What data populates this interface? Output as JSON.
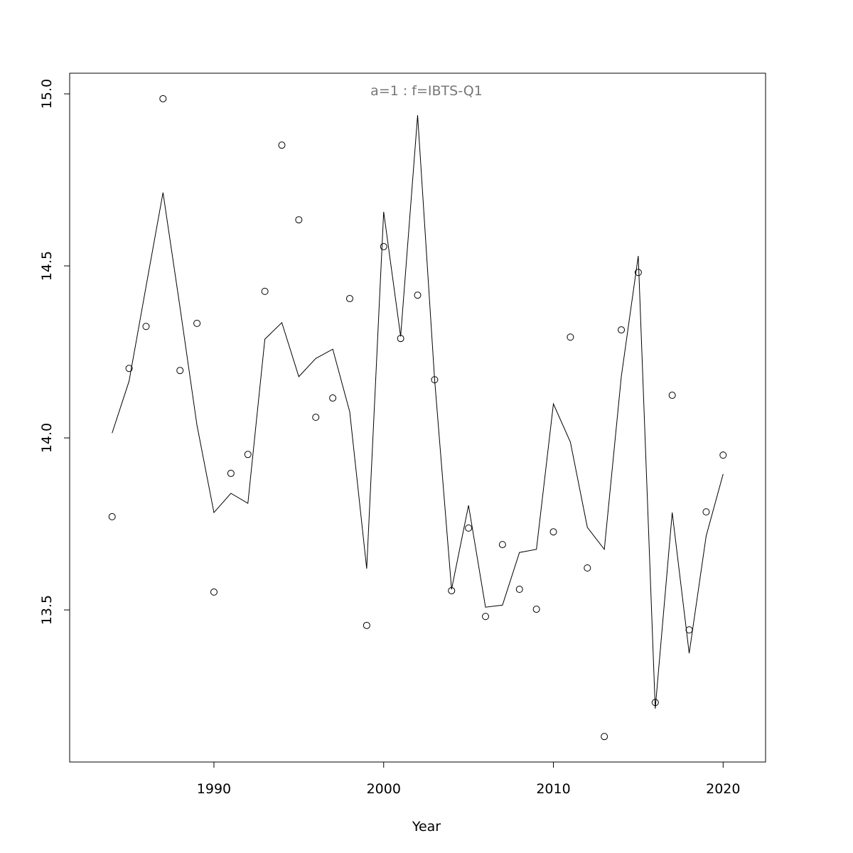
{
  "chart_data": {
    "type": "scatter",
    "title": "a=1  :  f=IBTS-Q1",
    "xlabel": "Year",
    "x": [
      1984,
      1985,
      1986,
      1987,
      1988,
      1989,
      1990,
      1991,
      1992,
      1993,
      1994,
      1995,
      1996,
      1997,
      1998,
      1999,
      2000,
      2001,
      2002,
      2003,
      2004,
      2005,
      2006,
      2007,
      2008,
      2009,
      2010,
      2011,
      2012,
      2013,
      2014,
      2015,
      2016,
      2017,
      2018,
      2019,
      2020
    ],
    "series": [
      {
        "mode": "points",
        "color": "#000000",
        "values": [
          13.771,
          14.202,
          14.324,
          14.986,
          14.196,
          14.333,
          13.552,
          13.897,
          13.952,
          14.426,
          14.851,
          14.634,
          14.06,
          14.116,
          14.405,
          13.455,
          14.556,
          14.289,
          14.415,
          14.169,
          13.556,
          13.738,
          13.481,
          13.69,
          13.56,
          13.502,
          13.727,
          14.293,
          13.622,
          13.132,
          14.314,
          14.481,
          13.231,
          14.124,
          13.442,
          13.785,
          13.95
        ]
      },
      {
        "mode": "line",
        "color": "#000000",
        "values": [
          14.014,
          14.165,
          14.44,
          14.713,
          14.38,
          14.037,
          13.783,
          13.839,
          13.81,
          14.287,
          14.335,
          14.178,
          14.231,
          14.258,
          14.076,
          13.62,
          14.657,
          14.295,
          14.938,
          14.171,
          13.56,
          13.804,
          13.508,
          13.514,
          13.667,
          13.676,
          14.099,
          13.988,
          13.74,
          13.676,
          14.178,
          14.529,
          13.213,
          13.783,
          13.374,
          13.715,
          13.895
        ]
      }
    ],
    "xlim": [
      1981.5,
      2022.5
    ],
    "ylim": [
      13.058,
      15.06
    ],
    "xticks": [
      1990,
      2000,
      2010,
      2020
    ],
    "yticks": [
      13.5,
      {
        "value": 14.0,
        "label": "14.0"
      },
      14.5,
      {
        "value": 15.0,
        "label": "15.0"
      }
    ]
  }
}
